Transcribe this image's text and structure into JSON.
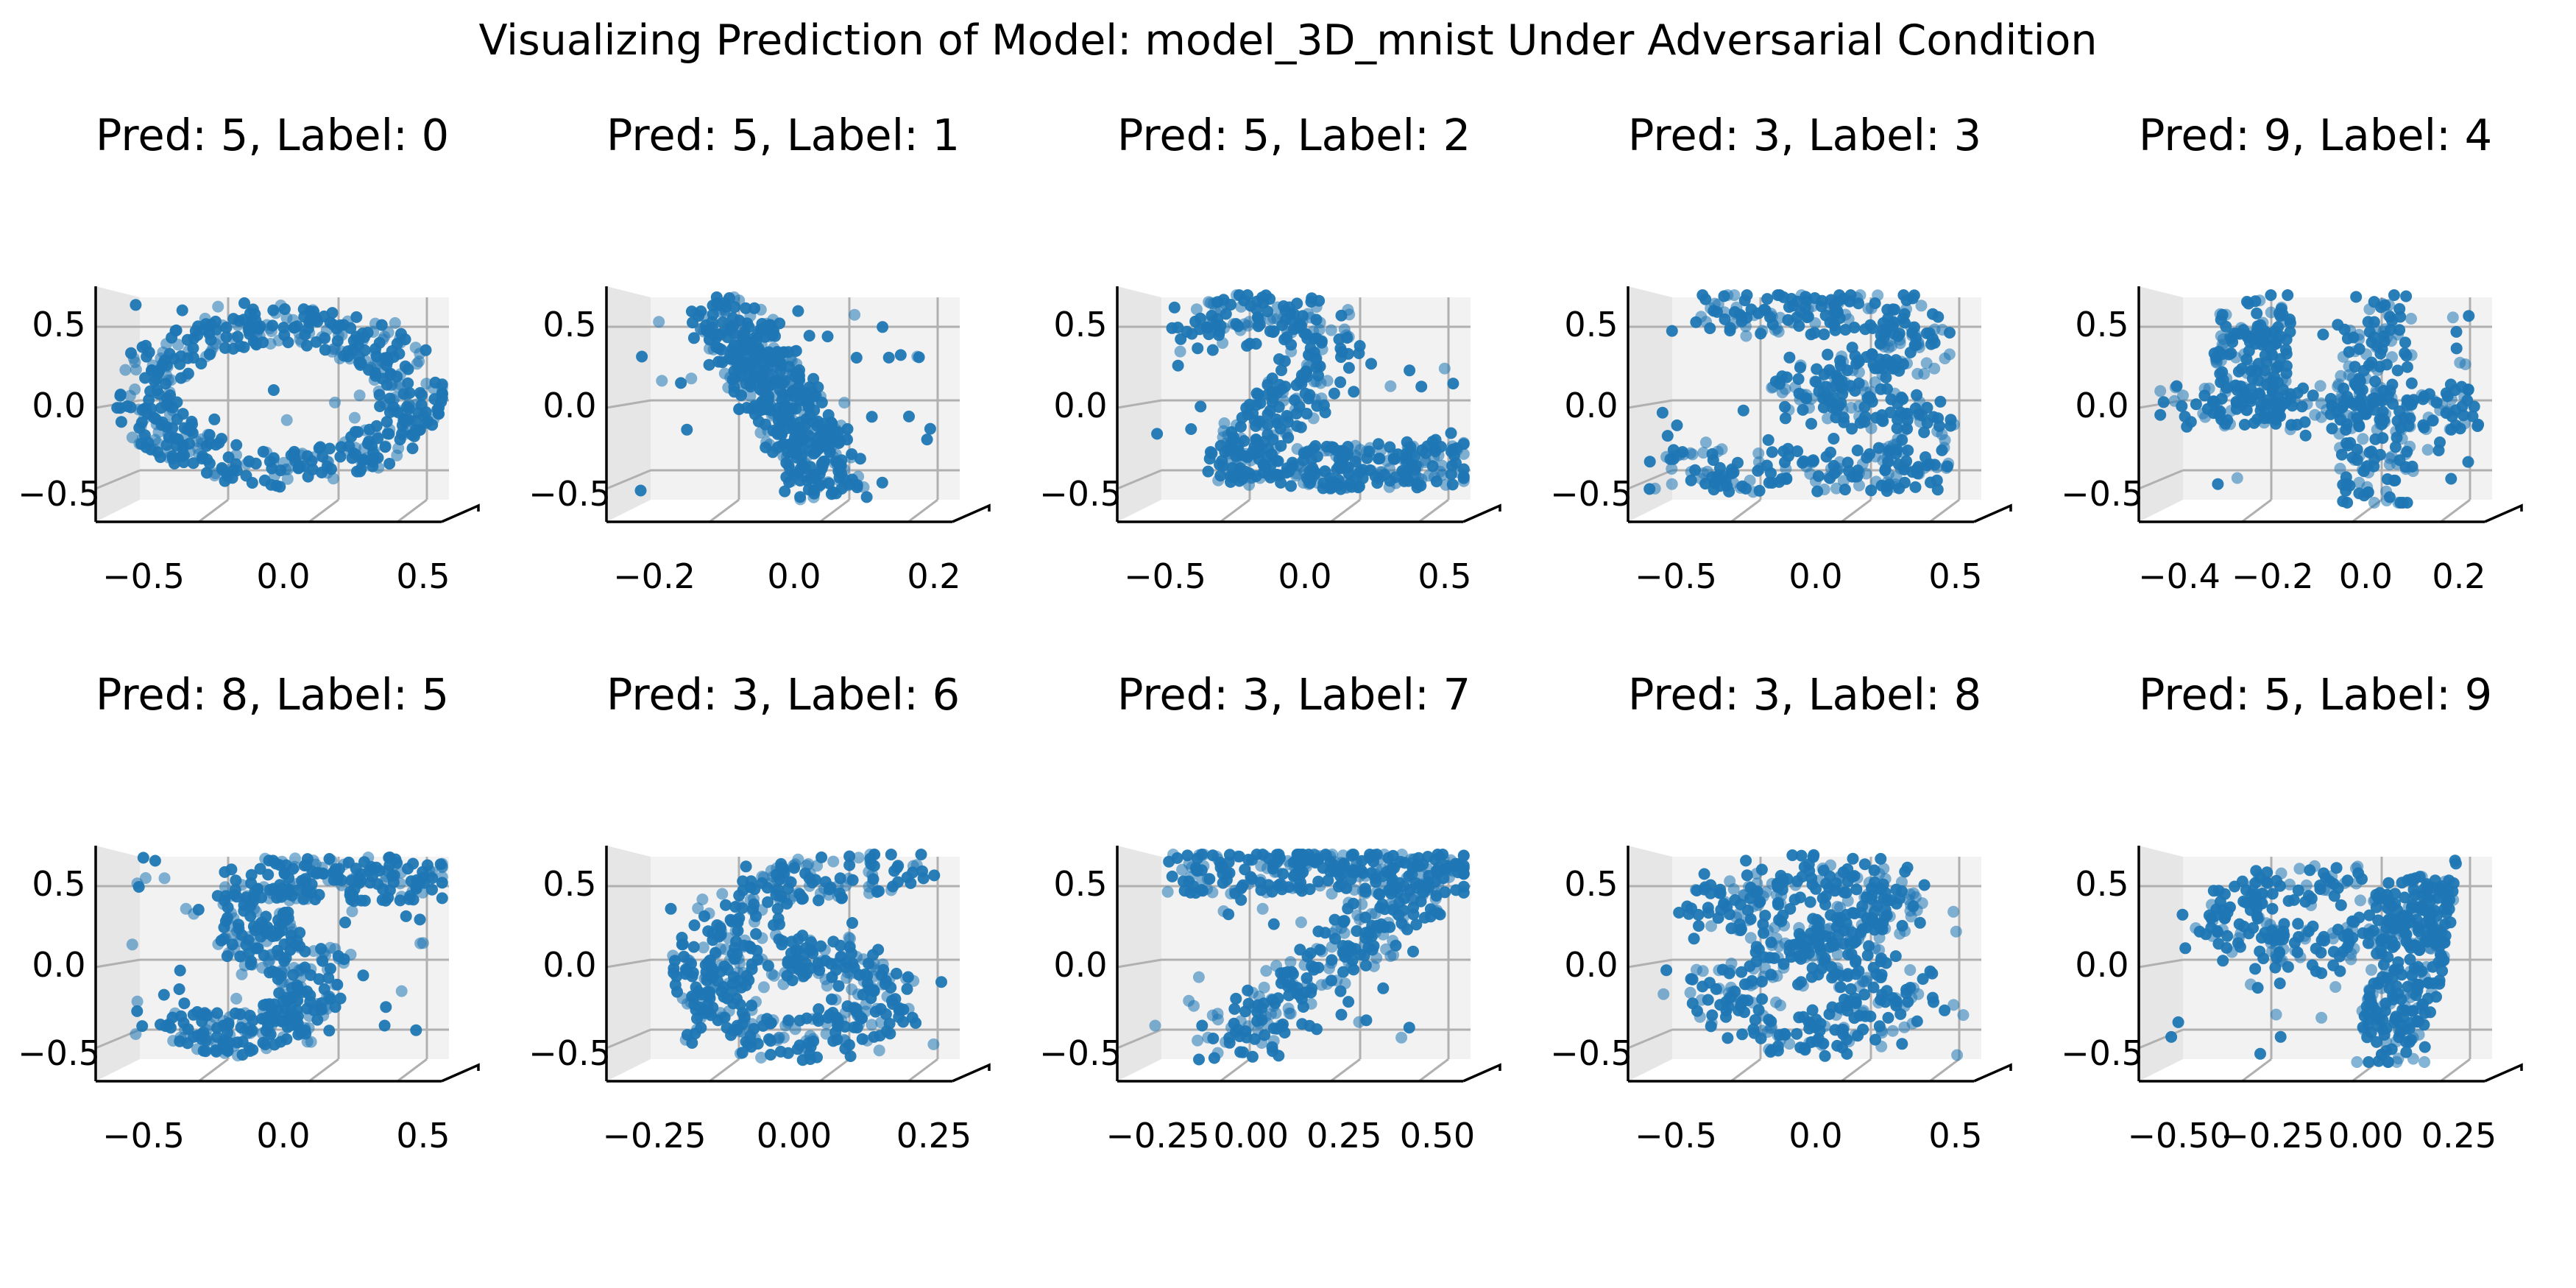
{
  "title": "Visualizing Prediction of Model: model_3D_mnist Under Adversarial Condition",
  "colors": {
    "points": "#1f77b4",
    "pane_back": "#f2f2f2",
    "pane_side": "#e6e6e6",
    "grid": "#b0b0b0",
    "axis": "#000000"
  },
  "chart_data": [
    {
      "type": "scatter",
      "title": "Pred: 5, Label: 0",
      "pred": 5,
      "label": 0,
      "shape": "ring",
      "xticks": [
        "−0.5",
        "0.0",
        "0.5"
      ],
      "yticks": [
        "0.5",
        "0.0",
        "−0.5"
      ],
      "xlim": [
        -0.75,
        0.75
      ],
      "ylim": [
        -0.6,
        0.6
      ]
    },
    {
      "type": "scatter",
      "title": "Pred: 5, Label: 1",
      "pred": 5,
      "label": 1,
      "shape": "diagonal",
      "xticks": [
        "−0.2",
        "0.0",
        "0.2"
      ],
      "yticks": [
        "0.5",
        "0.0",
        "−0.5"
      ],
      "xlim": [
        -0.3,
        0.3
      ],
      "ylim": [
        -0.6,
        0.6
      ]
    },
    {
      "type": "scatter",
      "title": "Pred: 5, Label: 2",
      "pred": 5,
      "label": 2,
      "shape": "two",
      "xticks": [
        "−0.5",
        "0.0",
        "0.5"
      ],
      "yticks": [
        "0.5",
        "0.0",
        "−0.5"
      ],
      "xlim": [
        -0.75,
        0.75
      ],
      "ylim": [
        -0.6,
        0.6
      ]
    },
    {
      "type": "scatter",
      "title": "Pred: 3, Label: 3",
      "pred": 3,
      "label": 3,
      "shape": "three",
      "xticks": [
        "−0.5",
        "0.0",
        "0.5"
      ],
      "yticks": [
        "0.5",
        "0.0",
        "−0.5"
      ],
      "xlim": [
        -0.75,
        0.75
      ],
      "ylim": [
        -0.6,
        0.6
      ]
    },
    {
      "type": "scatter",
      "title": "Pred: 9, Label: 4",
      "pred": 9,
      "label": 4,
      "shape": "four",
      "xticks": [
        "−0.4",
        "−0.2",
        "0.0",
        "0.2"
      ],
      "yticks": [
        "0.5",
        "0.0",
        "−0.5"
      ],
      "xlim": [
        -0.45,
        0.4
      ],
      "ylim": [
        -0.6,
        0.6
      ]
    },
    {
      "type": "scatter",
      "title": "Pred: 8, Label: 5",
      "pred": 8,
      "label": 5,
      "shape": "five",
      "xticks": [
        "−0.5",
        "0.0",
        "0.5"
      ],
      "yticks": [
        "0.5",
        "0.0",
        "−0.5"
      ],
      "xlim": [
        -0.75,
        0.75
      ],
      "ylim": [
        -0.6,
        0.6
      ]
    },
    {
      "type": "scatter",
      "title": "Pred: 3, Label: 6",
      "pred": 3,
      "label": 6,
      "shape": "six",
      "xticks": [
        "−0.25",
        "0.00",
        "0.25"
      ],
      "yticks": [
        "0.5",
        "0.0",
        "−0.5"
      ],
      "xlim": [
        -0.45,
        0.5
      ],
      "ylim": [
        -0.6,
        0.6
      ]
    },
    {
      "type": "scatter",
      "title": "Pred: 3, Label: 7",
      "pred": 3,
      "label": 7,
      "shape": "seven",
      "xticks": [
        "−0.25",
        "0.00",
        "0.25",
        "0.50"
      ],
      "yticks": [
        "0.5",
        "0.0",
        "−0.5"
      ],
      "xlim": [
        -0.4,
        0.65
      ],
      "ylim": [
        -0.6,
        0.6
      ]
    },
    {
      "type": "scatter",
      "title": "Pred: 3, Label: 8",
      "pred": 3,
      "label": 8,
      "shape": "eight",
      "xticks": [
        "−0.5",
        "0.0",
        "0.5"
      ],
      "yticks": [
        "0.5",
        "0.0",
        "−0.5"
      ],
      "xlim": [
        -0.75,
        0.75
      ],
      "ylim": [
        -0.6,
        0.6
      ]
    },
    {
      "type": "scatter",
      "title": "Pred: 5, Label: 9",
      "pred": 5,
      "label": 9,
      "shape": "nine",
      "xticks": [
        "−0.50",
        "−0.25",
        "0.00",
        "0.25"
      ],
      "yticks": [
        "0.5",
        "0.0",
        "−0.5"
      ],
      "xlim": [
        -0.6,
        0.45
      ],
      "ylim": [
        -0.6,
        0.6
      ]
    }
  ]
}
